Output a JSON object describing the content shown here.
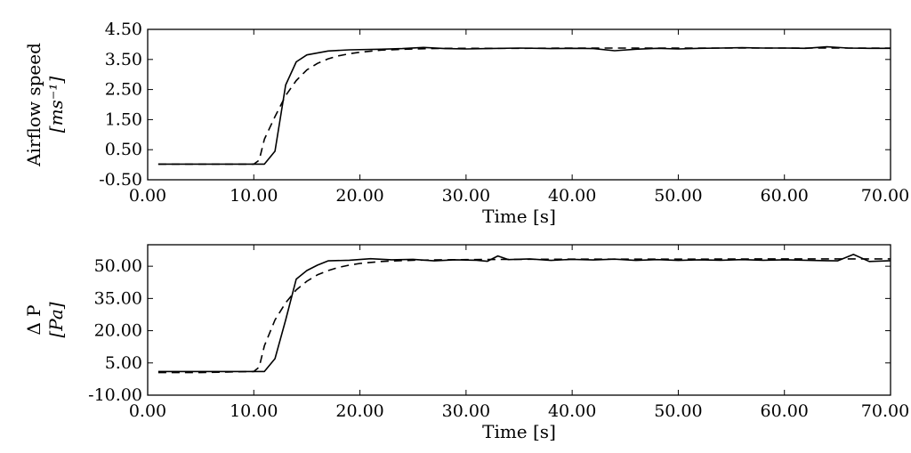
{
  "chart_data": [
    {
      "type": "line",
      "xlabel": "Time [s]",
      "ylabel": "Airflow speed",
      "yunit": "[ms⁻¹]",
      "xlim": [
        0,
        70
      ],
      "ylim": [
        -0.5,
        4.5
      ],
      "xticks": [
        "0.00",
        "10.00",
        "20.00",
        "30.00",
        "40.00",
        "50.00",
        "60.00",
        "70.00"
      ],
      "yticks": [
        "-0.50",
        "0.50",
        "1.50",
        "2.50",
        "3.50",
        "4.50"
      ],
      "xtick_values": [
        0,
        10,
        20,
        30,
        40,
        50,
        60,
        70
      ],
      "ytick_values": [
        -0.5,
        0.5,
        1.5,
        2.5,
        3.5,
        4.5
      ],
      "grid": false,
      "legend": "none",
      "series": [
        {
          "style": "solid",
          "x": [
            1,
            5,
            10,
            11,
            12,
            13,
            14,
            15,
            17,
            19,
            22,
            24,
            26,
            28,
            30,
            32,
            35,
            38,
            40,
            42,
            44,
            46,
            48,
            50,
            52,
            54,
            56,
            58,
            60,
            62,
            64,
            66,
            68,
            70
          ],
          "y": [
            0.02,
            0.02,
            0.02,
            0.02,
            0.45,
            2.65,
            3.42,
            3.65,
            3.78,
            3.82,
            3.84,
            3.86,
            3.9,
            3.86,
            3.85,
            3.86,
            3.88,
            3.86,
            3.87,
            3.86,
            3.79,
            3.84,
            3.87,
            3.85,
            3.87,
            3.88,
            3.89,
            3.88,
            3.88,
            3.87,
            3.92,
            3.88,
            3.87,
            3.87
          ]
        },
        {
          "style": "dashed",
          "x": [
            1,
            5,
            10,
            10.5,
            11,
            12,
            13,
            14,
            15,
            16,
            17,
            18,
            19,
            20,
            22,
            25,
            28,
            30,
            35,
            40,
            50,
            60,
            70
          ],
          "y": [
            0.02,
            0.02,
            0.02,
            0.15,
            0.85,
            1.6,
            2.3,
            2.8,
            3.15,
            3.37,
            3.52,
            3.62,
            3.69,
            3.74,
            3.81,
            3.85,
            3.87,
            3.87,
            3.87,
            3.88,
            3.88,
            3.88,
            3.88
          ]
        }
      ]
    },
    {
      "type": "line",
      "xlabel": "Time [s]",
      "ylabel": "Δ P",
      "yunit": "[Pa]",
      "xlim": [
        0,
        70
      ],
      "ylim": [
        -10,
        60
      ],
      "xticks": [
        "0.00",
        "10.00",
        "20.00",
        "30.00",
        "40.00",
        "50.00",
        "60.00",
        "70.00"
      ],
      "yticks": [
        "-10.00",
        "5.00",
        "20.00",
        "35.00",
        "50.00"
      ],
      "xtick_values": [
        0,
        10,
        20,
        30,
        40,
        50,
        60,
        70
      ],
      "ytick_values": [
        -10,
        5,
        20,
        35,
        50
      ],
      "grid": false,
      "legend": "none",
      "series": [
        {
          "style": "solid",
          "x": [
            1,
            5,
            10,
            11,
            12,
            13,
            14,
            15,
            16,
            17,
            19,
            21,
            23,
            25,
            27,
            29,
            31,
            32,
            33,
            34,
            36,
            38,
            40,
            42,
            44,
            46,
            48,
            50,
            52,
            54,
            56,
            58,
            60,
            62,
            64,
            65,
            66.5,
            68,
            70
          ],
          "y": [
            1,
            1,
            1,
            1,
            7,
            25,
            44,
            48,
            50.5,
            52.5,
            52.8,
            53.5,
            53,
            53.2,
            52.5,
            53,
            52.8,
            52.3,
            54.8,
            53.1,
            53.4,
            52.7,
            53.2,
            52.9,
            53.3,
            52.7,
            53.1,
            52.7,
            53,
            52.8,
            53.1,
            52.8,
            53,
            52.8,
            52.6,
            52.5,
            55.5,
            52.2,
            52.6
          ]
        },
        {
          "style": "dashed",
          "x": [
            1,
            5,
            10,
            10.5,
            11,
            12,
            13,
            14,
            15,
            16,
            17,
            18,
            19,
            20,
            22,
            25,
            28,
            30,
            35,
            40,
            50,
            60,
            70
          ],
          "y": [
            0.5,
            0.5,
            1,
            3,
            13,
            25,
            33,
            39,
            43,
            46,
            48,
            49.5,
            50.5,
            51.3,
            52.2,
            52.8,
            53,
            53.1,
            53.2,
            53.3,
            53.3,
            53.4,
            53.4
          ]
        }
      ]
    }
  ]
}
